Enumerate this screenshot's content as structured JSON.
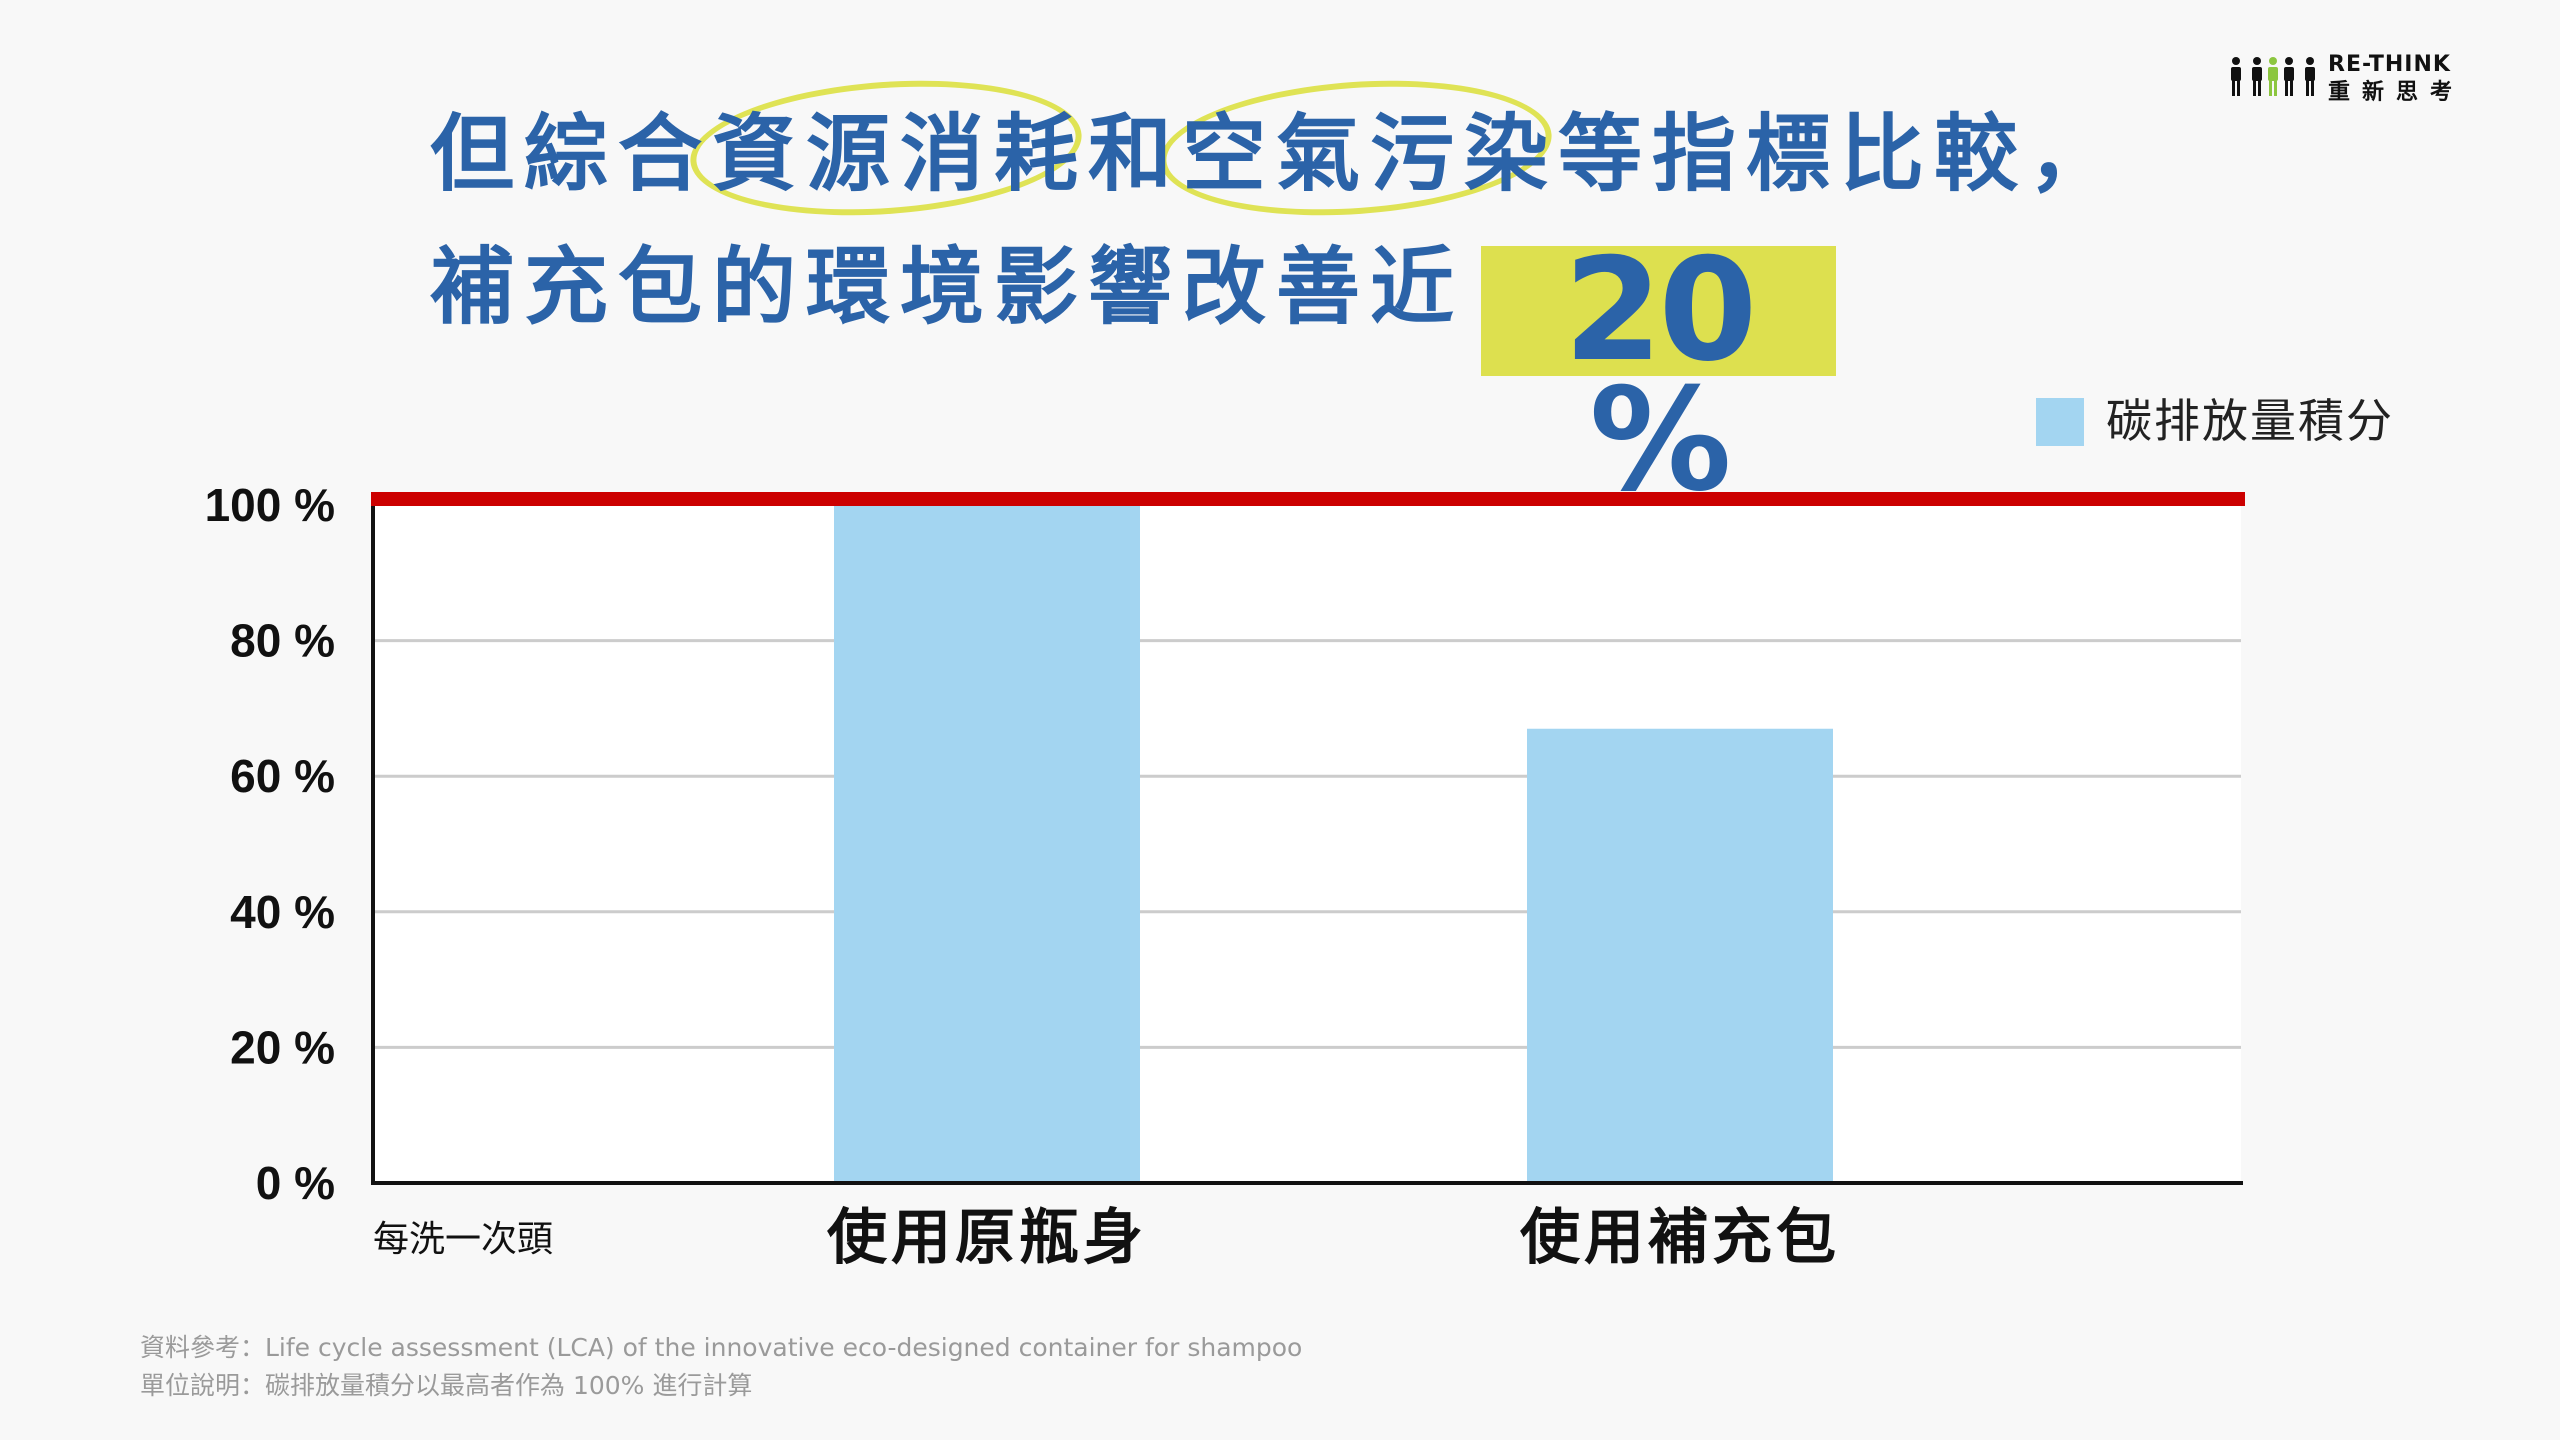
{
  "headline": {
    "line1": "但綜合資源消耗和空氣污染等指標比較，",
    "line2": "補充包的環境影響改善近",
    "highlight": "20 %"
  },
  "logo": {
    "title": "RE-THINK",
    "subtitle": "重新思考"
  },
  "colors": {
    "headline": "#2b63a8",
    "highlight_bg": "#dde04f",
    "bar": "#a3d5f1",
    "reference_line": "#cc0000",
    "circle": "#dfe355"
  },
  "icons": [
    "people-logo-icon"
  ],
  "chart_data": {
    "type": "bar",
    "categories": [
      "使用原瓶身",
      "使用補充包"
    ],
    "series": [
      {
        "name": "碳排放量積分",
        "values": [
          100,
          67
        ]
      }
    ],
    "ylim": [
      0,
      100
    ],
    "yticks": [
      "0 %",
      "20 %",
      "40 %",
      "60 %",
      "80 %",
      "100 %"
    ],
    "ytick_values": [
      0,
      20,
      40,
      60,
      80,
      100
    ],
    "xlabel": "每洗一次頭",
    "reference_line": 100,
    "grid": true,
    "legend": "top-right"
  },
  "footnotes": {
    "source": "資料參考：Life cycle assessment (LCA) of the innovative eco-designed container for shampoo",
    "unit": "單位說明：碳排放量積分以最高者作為 100% 進行計算"
  }
}
